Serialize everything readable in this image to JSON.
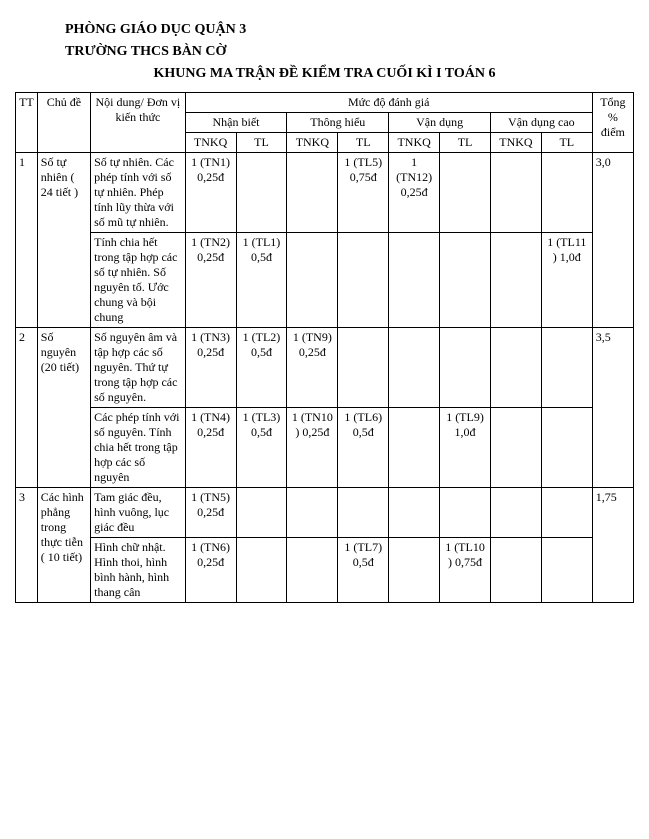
{
  "header": {
    "line1": "PHÒNG GIÁO DỤC QUẬN 3",
    "line2": "TRƯỜNG THCS BÀN CỜ",
    "title": "KHUNG MA TRẬN ĐỀ KIỂM TRA CUỐI KÌ I TOÁN 6"
  },
  "thead": {
    "tt": "TT",
    "chude": "Chủ đề",
    "noidung": "Nội dung/ Đơn vị kiến thức",
    "mucdo": "Mức độ đánh giá",
    "tong": "Tổng % điểm",
    "lv1": "Nhận biết",
    "lv2": "Thông hiểu",
    "lv3": "Vận dụng",
    "lv4": "Vận dụng cao",
    "tnkq": "TNKQ",
    "tl": "TL"
  },
  "rows": [
    {
      "tt": "1",
      "chude": "Số tự nhiên ( 24 tiết )",
      "sub": [
        {
          "nd": "Số tự nhiên. Các phép tính với số tự nhiên. Phép tính lũy thừa với số mũ tự nhiên.",
          "c": [
            "1 (TN1) 0,25đ",
            "",
            "",
            "1 (TL5) 0,75đ",
            "1 (TN12) 0,25đ",
            "",
            "",
            ""
          ],
          "tong": "3,0"
        },
        {
          "nd": "Tính chia hết trong tập hợp các số tự nhiên. Số nguyên tố. Ước chung và bội chung",
          "c": [
            "1 (TN2) 0,25đ",
            "1 (TL1) 0,5đ",
            "",
            "",
            "",
            "",
            "",
            "1 (TL11 ) 1,0đ"
          ]
        }
      ]
    },
    {
      "tt": "2",
      "chude": "Số nguyên (20 tiết)",
      "sub": [
        {
          "nd": "Số nguyên âm và tập hợp các số nguyên. Thứ tự trong tập hợp các số nguyên.",
          "c": [
            "1 (TN3) 0,25đ",
            "1 (TL2) 0,5đ",
            "1 (TN9) 0,25đ",
            "",
            "",
            "",
            "",
            ""
          ],
          "tong": "3,5"
        },
        {
          "nd": "Các phép tính với số nguyên. Tính chia hết trong tập hợp các số nguyên",
          "c": [
            "1 (TN4) 0,25đ",
            "1 (TL3) 0,5đ",
            "1 (TN10 ) 0,25đ",
            "1 (TL6) 0,5đ",
            "",
            "1 (TL9) 1,0đ",
            "",
            ""
          ]
        }
      ]
    },
    {
      "tt": "3",
      "chude": "Các hình phẳng trong thực tiễn ( 10 tiết)",
      "sub": [
        {
          "nd": "Tam giác đều, hình vuông, lục giác đều",
          "c": [
            "1 (TN5) 0,25đ",
            "",
            "",
            "",
            "",
            "",
            "",
            ""
          ],
          "tong": "1,75"
        },
        {
          "nd": "Hình chữ nhật. Hình thoi, hình bình hành, hình thang cân",
          "c": [
            "1 (TN6) 0,25đ",
            "",
            "",
            "1 (TL7) 0,5đ",
            "",
            "1 (TL10 ) 0,75đ",
            "",
            ""
          ]
        }
      ]
    }
  ]
}
